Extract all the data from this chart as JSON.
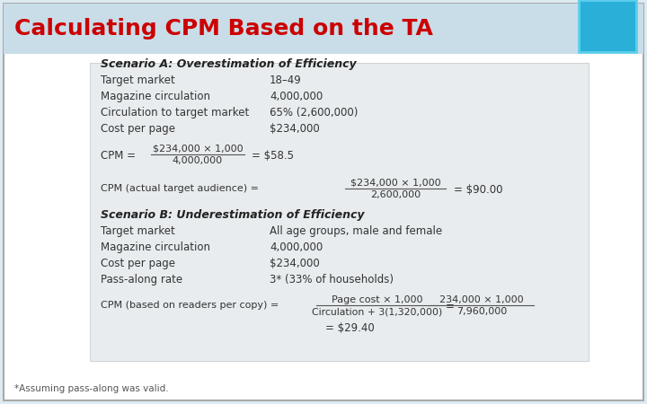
{
  "title": "Calculating CPM Based on the TA",
  "title_color": "#cc0000",
  "title_fontsize": 18,
  "outer_bg": "#ddeaf2",
  "inner_bg": "#ffffff",
  "box_bg": "#e8ecee",
  "box_edge_color": "#cccccc",
  "accent_color": "#2ab0d8",
  "accent_border": "#5dcfed",
  "text_color": "#333333",
  "footnote": "*Assuming pass-along was valid.",
  "scenario_a_title": "Scenario A: Overestimation of Efficiency",
  "scenario_b_title": "Scenario B: Underestimation of Efficiency",
  "scenario_a_rows": [
    [
      "Target market",
      "18–49"
    ],
    [
      "Magazine circulation",
      "4,000,000"
    ],
    [
      "Circulation to target market",
      "65% (2,600,000)"
    ],
    [
      "Cost per page",
      "$234,000"
    ]
  ],
  "scenario_b_rows": [
    [
      "Target market",
      "All age groups, male and female"
    ],
    [
      "Magazine circulation",
      "4,000,000"
    ],
    [
      "Cost per page",
      "$234,000"
    ],
    [
      "Pass-along rate",
      "3* (33% of households)"
    ]
  ]
}
